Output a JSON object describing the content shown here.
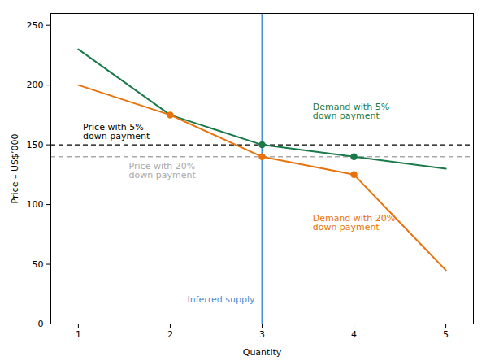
{
  "chart_data": {
    "type": "line",
    "xlabel": "Quantity",
    "ylabel": "Price – US$’000",
    "xlim": [
      0.7,
      5.3
    ],
    "ylim": [
      0,
      260
    ],
    "xticks": [
      1,
      2,
      3,
      4,
      5
    ],
    "yticks": [
      0,
      50,
      100,
      150,
      200,
      250
    ],
    "grid": false,
    "x": [
      1,
      2,
      3,
      4,
      5
    ],
    "series": [
      {
        "name": "Demand with 5%\ndown payment",
        "color": "#1a7a4a",
        "values": [
          230,
          175,
          150,
          140,
          130
        ],
        "marker": "circle",
        "marker_x": [
          3,
          4
        ],
        "marker_y": [
          150,
          140
        ]
      },
      {
        "name": "Demand with 20%\ndown payment",
        "color": "#e8720c",
        "values": [
          200,
          175,
          140,
          125,
          45
        ],
        "marker": "circle",
        "marker_x": [
          2,
          3,
          4
        ],
        "marker_y": [
          175,
          140,
          125
        ]
      }
    ],
    "reference_lines": [
      {
        "axis": "x",
        "value": 3,
        "color": "#4a90d9",
        "line_style": "solid",
        "label": "Inferred supply"
      },
      {
        "axis": "y",
        "value": 150,
        "color": "#000000",
        "line_style": "dashed",
        "label": "Price with 5%\ndown payment"
      },
      {
        "axis": "y",
        "value": 140,
        "color": "#aaaaaa",
        "line_style": "dashed",
        "label": "Price with 20%\ndown payment"
      }
    ]
  }
}
